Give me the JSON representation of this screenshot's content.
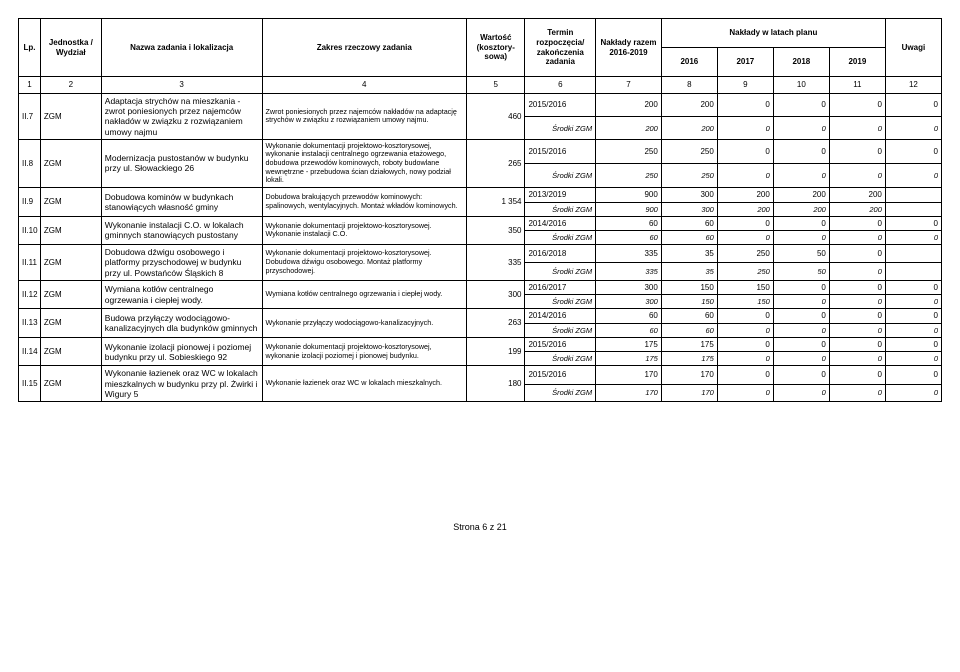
{
  "head": {
    "c1": "Lp.",
    "c2": "Jednostka / Wydział",
    "c3": "Nazwa zadania i lokalizacja",
    "c4": "Zakres rzeczowy zadania",
    "c5": "Wartość (kosztory-sowa)",
    "c6": "Termin rozpoczęcia/ zakończenia zadania",
    "c7": "Nakłady razem 2016-2019",
    "c8g": "Nakłady w latach planu",
    "c8": "2016",
    "c9": "2017",
    "c10": "2018",
    "c11": "2019",
    "c12": "Uwagi"
  },
  "numrow": [
    "1",
    "2",
    "3",
    "4",
    "5",
    "6",
    "7",
    "8",
    "9",
    "10",
    "11",
    "12"
  ],
  "rows": [
    {
      "lp": "II.7",
      "unit": "ZGM",
      "name": "Adaptacja strychów na mieszkania - zwrot poniesionych przez najemców nakładów w związku z rozwiązaniem umowy najmu",
      "scope": "Zwrot poniesionych przez najemców nakładów na adaptację strychów w związku z rozwiązaniem umowy najmu.",
      "val": "460",
      "term": "2015/2016",
      "sum": "200",
      "y16": "200",
      "y17": "0",
      "y18": "0",
      "y19": "0",
      "note": "0",
      "sub": {
        "label": "Środki ZGM",
        "sum": "200",
        "y16": "200",
        "y17": "0",
        "y18": "0",
        "y19": "0",
        "note": "0"
      }
    },
    {
      "lp": "II.8",
      "unit": "ZGM",
      "name": "Modernizacja pustostanów w budynku przy ul. Słowackiego 26",
      "scope": "Wykonanie dokumentacji projektowo-kosztorysowej, wykonanie instalacji centralnego ogrzewania etażowego, dobudowa przewodów kominowych, roboty budowlane wewnętrzne - przebudowa ścian działowych, nowy podział lokali.",
      "val": "265",
      "term": "2015/2016",
      "sum": "250",
      "y16": "250",
      "y17": "0",
      "y18": "0",
      "y19": "0",
      "note": "0",
      "sub": {
        "label": "Środki ZGM",
        "sum": "250",
        "y16": "250",
        "y17": "0",
        "y18": "0",
        "y19": "0",
        "note": "0"
      }
    },
    {
      "lp": "II.9",
      "unit": "ZGM",
      "name": "Dobudowa kominów w budynkach stanowiących własność gminy",
      "scope": "Dobudowa brakujących przewodów kominowych: spalinowych, wentylacyjnych. Montaż wkładów kominowych.",
      "val": "1 354",
      "term": "2013/2019",
      "sum": "900",
      "y16": "300",
      "y17": "200",
      "y18": "200",
      "y19": "200",
      "note": "",
      "sub": {
        "label": "Środki ZGM",
        "sum": "900",
        "y16": "300",
        "y17": "200",
        "y18": "200",
        "y19": "200",
        "note": ""
      }
    },
    {
      "lp": "II.10",
      "unit": "ZGM",
      "name": "Wykonanie instalacji C.O. w lokalach gminnych stanowiących pustostany",
      "scope": "Wykonanie dokumentacji projektowo-kosztorysowej. Wykonanie instalacji C.O.",
      "val": "350",
      "term": "2014/2016",
      "sum": "60",
      "y16": "60",
      "y17": "0",
      "y18": "0",
      "y19": "0",
      "note": "0",
      "sub": {
        "label": "Środki ZGM",
        "sum": "60",
        "y16": "60",
        "y17": "0",
        "y18": "0",
        "y19": "0",
        "note": "0"
      }
    },
    {
      "lp": "II.11",
      "unit": "ZGM",
      "name": "Dobudowa dźwigu osobowego i platformy przyschodowej w budynku przy ul. Powstańców Śląskich 8",
      "scope": "Wykonanie dokumentacji projektowo-kosztorysowej. Dobudowa dźwigu osobowego. Montaż platformy przyschodowej.",
      "val": "335",
      "term": "2016/2018",
      "sum": "335",
      "y16": "35",
      "y17": "250",
      "y18": "50",
      "y19": "0",
      "note": "",
      "sub": {
        "label": "Środki ZGM",
        "sum": "335",
        "y16": "35",
        "y17": "250",
        "y18": "50",
        "y19": "0",
        "note": ""
      }
    },
    {
      "lp": "II.12",
      "unit": "ZGM",
      "name": "Wymiana kotłów centralnego ogrzewania i ciepłej wody.",
      "scope": "Wymiana kotłów centralnego ogrzewania i ciepłej wody.",
      "val": "300",
      "term": "2016/2017",
      "sum": "300",
      "y16": "150",
      "y17": "150",
      "y18": "0",
      "y19": "0",
      "note": "0",
      "sub": {
        "label": "Środki ZGM",
        "sum": "300",
        "y16": "150",
        "y17": "150",
        "y18": "0",
        "y19": "0",
        "note": "0"
      }
    },
    {
      "lp": "II.13",
      "unit": "ZGM",
      "name": "Budowa przyłączy wodociągowo-kanalizacyjnych dla budynków gminnych",
      "scope": "Wykonanie przyłączy wodociągowo-kanalizacyjnych.",
      "val": "263",
      "term": "2014/2016",
      "sum": "60",
      "y16": "60",
      "y17": "0",
      "y18": "0",
      "y19": "0",
      "note": "0",
      "sub": {
        "label": "Środki ZGM",
        "sum": "60",
        "y16": "60",
        "y17": "0",
        "y18": "0",
        "y19": "0",
        "note": "0"
      }
    },
    {
      "lp": "II.14",
      "unit": "ZGM",
      "name": "Wykonanie izolacji pionowej i poziomej budynku przy ul. Sobieskiego 92",
      "scope": "Wykonanie dokumentacji projektowo-kosztorysowej, wykonanie izolacji poziomej i pionowej budynku.",
      "val": "199",
      "term": "2015/2016",
      "sum": "175",
      "y16": "175",
      "y17": "0",
      "y18": "0",
      "y19": "0",
      "note": "0",
      "sub": {
        "label": "Środki ZGM",
        "sum": "175",
        "y16": "175",
        "y17": "0",
        "y18": "0",
        "y19": "0",
        "note": "0"
      }
    },
    {
      "lp": "II.15",
      "unit": "ZGM",
      "name": "Wykonanie łazienek oraz WC w lokalach mieszkalnych w budynku przy pl. Żwirki i Wigury 5",
      "scope": "Wykonanie łazienek oraz WC w lokalach mieszkalnych.",
      "val": "180",
      "term": "2015/2016",
      "sum": "170",
      "y16": "170",
      "y17": "0",
      "y18": "0",
      "y19": "0",
      "note": "0",
      "sub": {
        "label": "Środki ZGM",
        "sum": "170",
        "y16": "170",
        "y17": "0",
        "y18": "0",
        "y19": "0",
        "note": "0"
      }
    }
  ],
  "footer": "Strona 6 z 21"
}
